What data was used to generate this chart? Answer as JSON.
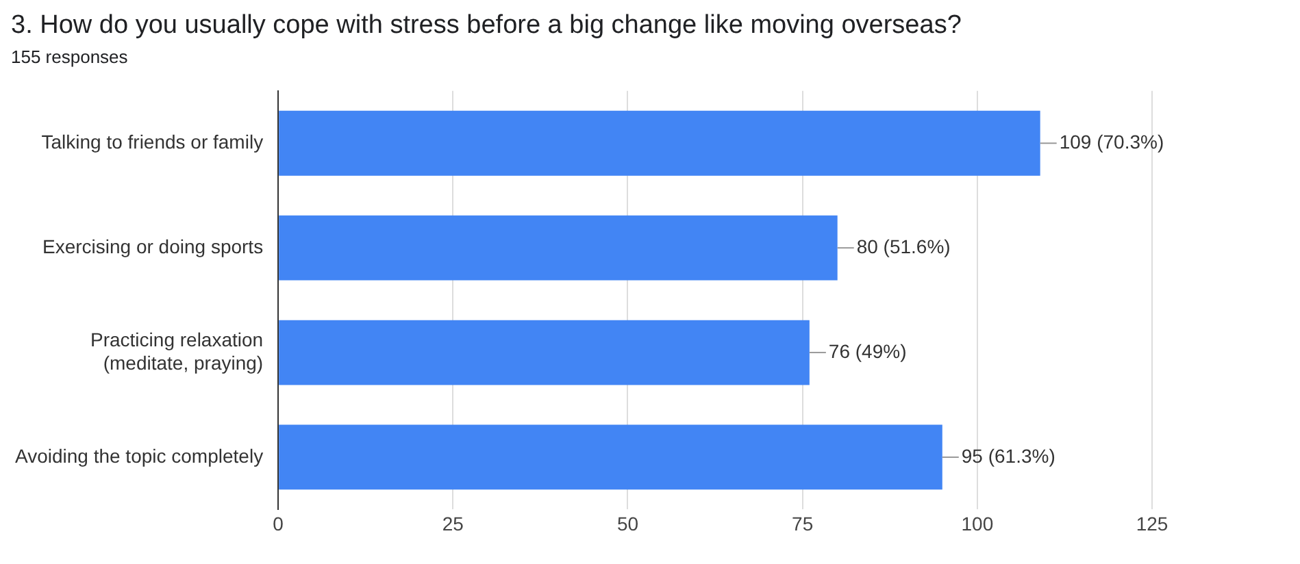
{
  "chart_data": {
    "type": "bar",
    "orientation": "horizontal",
    "title": "3.  How do you usually cope with stress before a big change like moving overseas?",
    "subtitle": "155 responses",
    "categories": [
      "Talking to friends or family",
      "Exercising or doing sports",
      "Practicing relaxation (meditate, praying)",
      "Avoiding the topic completely"
    ],
    "values": [
      109,
      80,
      76,
      95
    ],
    "value_labels": [
      "109 (70.3%)",
      "80 (51.6%)",
      "76 (49%)",
      "95 (61.3%)"
    ],
    "color": "#4285f4",
    "xlim": [
      0,
      125
    ],
    "xticks": [
      0,
      25,
      50,
      75,
      100,
      125
    ],
    "grid": "x",
    "legend": false
  }
}
